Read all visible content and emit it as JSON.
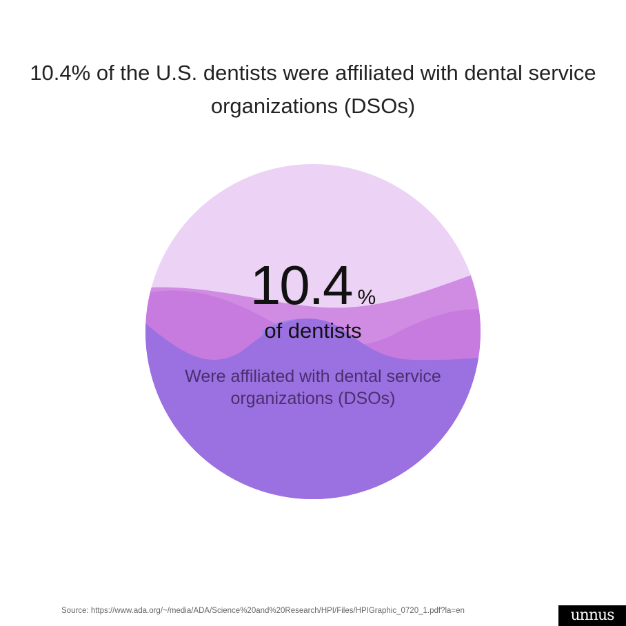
{
  "title": "10.4% of the U.S. dentists were affiliated with dental service organizations (DSOs)",
  "chart_data": {
    "type": "pie",
    "title": "10.4% of the U.S. dentists were affiliated with dental service organizations (DSOs)",
    "value": 10.4,
    "value_label": "10.4",
    "unit": "%",
    "label": "of dentists",
    "description": "Were affiliated with dental service organizations (DSOs)",
    "colors": {
      "light": "#ECD3F5",
      "mid": "#D08CE3",
      "magenta": "#C77BDF",
      "purple": "#9B70E0",
      "blue": "#9A84E6"
    }
  },
  "source": "Source: https://www.ada.org/~/media/ADA/Science%20and%20Research/HPI/Files/HPIGraphic_0720_1.pdf?la=en",
  "logo": "unnus"
}
